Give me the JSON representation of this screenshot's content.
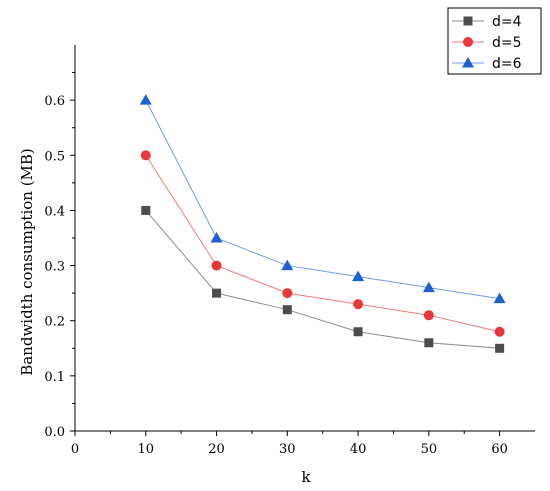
{
  "chart_data": {
    "type": "line",
    "title": "",
    "xlabel": "k",
    "ylabel": "Bandwidth consumption (MB)",
    "xlim": [
      0,
      65
    ],
    "ylim": [
      0,
      0.7
    ],
    "x_ticks": [
      0,
      10,
      20,
      30,
      40,
      50,
      60
    ],
    "y_ticks": [
      0,
      0.1,
      0.2,
      0.3,
      0.4,
      0.5,
      0.6
    ],
    "x_tick_labels": [
      "0",
      "10",
      "20",
      "30",
      "40",
      "50",
      "60"
    ],
    "y_tick_labels": [
      "0.0",
      "0.1",
      "0.2",
      "0.3",
      "0.4",
      "0.5",
      "0.6"
    ],
    "grid": false,
    "legend_position": "top-right",
    "x": [
      10,
      20,
      30,
      40,
      50,
      60
    ],
    "series": [
      {
        "name": "d=4",
        "values": [
          0.4,
          0.25,
          0.22,
          0.18,
          0.16,
          0.15
        ],
        "color": "#4d4d4d",
        "line_color": "#8c8c8c",
        "marker": "square"
      },
      {
        "name": "d=5",
        "values": [
          0.5,
          0.3,
          0.25,
          0.23,
          0.21,
          0.18
        ],
        "color": "#e8363a",
        "line_color": "#f07a7a",
        "marker": "circle"
      },
      {
        "name": "d=6",
        "values": [
          0.6,
          0.35,
          0.3,
          0.28,
          0.26,
          0.24
        ],
        "color": "#1f5fd6",
        "line_color": "#6f9be8",
        "marker": "triangle"
      }
    ]
  }
}
